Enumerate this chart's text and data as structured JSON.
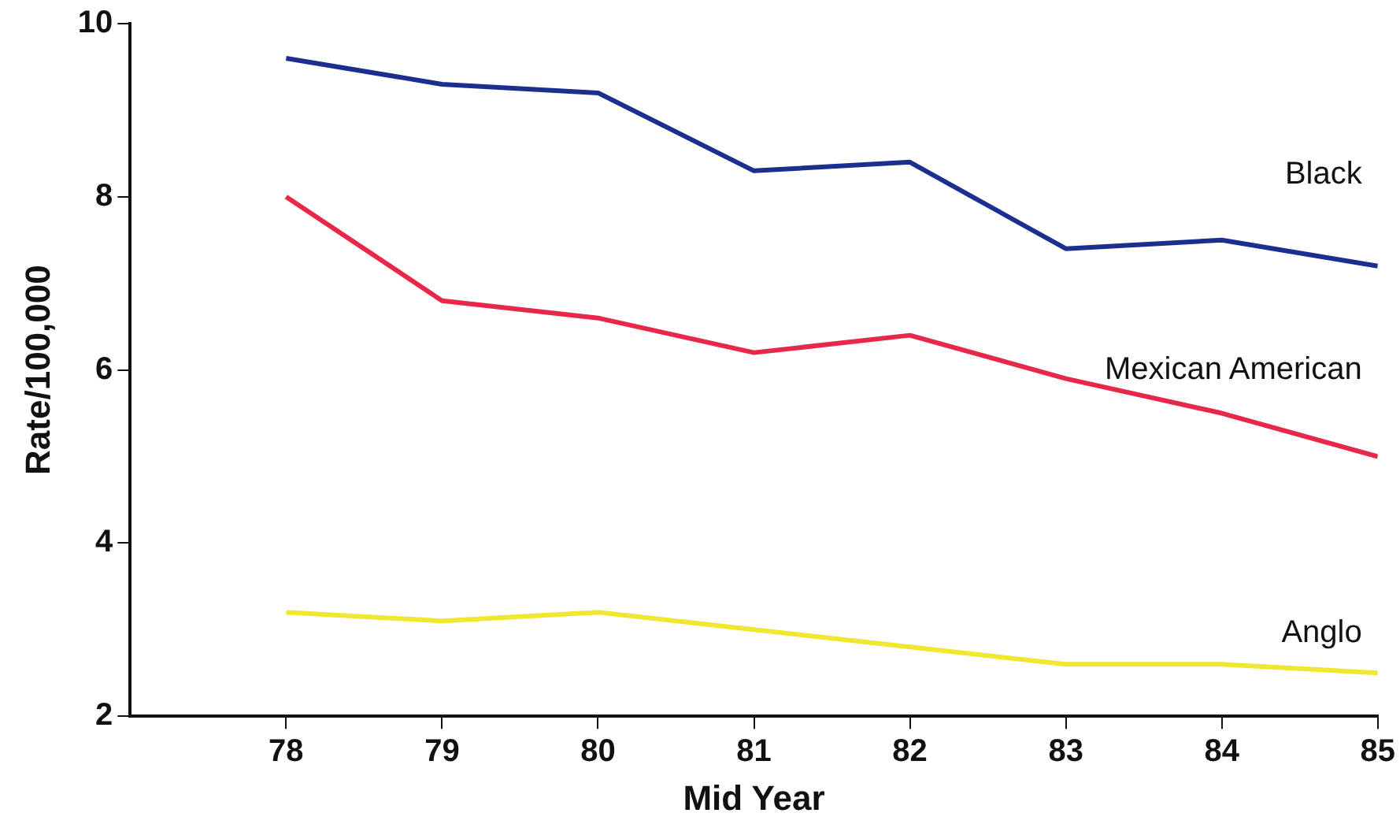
{
  "chart_data": {
    "type": "line",
    "xlabel": "Mid Year",
    "ylabel": "Rate/100,000",
    "x": [
      78,
      79,
      80,
      81,
      82,
      83,
      84,
      85
    ],
    "series": [
      {
        "name": "Black",
        "color": "#1c2f8f",
        "values": [
          9.6,
          9.3,
          9.2,
          8.3,
          8.4,
          7.4,
          7.5,
          7.2
        ]
      },
      {
        "name": "Mexican American",
        "color": "#e8284a",
        "values": [
          8.0,
          6.8,
          6.6,
          6.2,
          6.4,
          5.9,
          5.5,
          5.0
        ]
      },
      {
        "name": "Anglo",
        "color": "#f0e830",
        "values": [
          3.2,
          3.1,
          3.2,
          3.0,
          2.8,
          2.6,
          2.6,
          2.5
        ]
      }
    ],
    "xlim": [
      77,
      85
    ],
    "xticks": [
      78,
      79,
      80,
      81,
      82,
      83,
      84,
      85
    ],
    "ylim": [
      2,
      10
    ],
    "yticks": [
      2,
      4,
      6,
      8,
      10
    ],
    "grid": false,
    "legend": false,
    "marker": "none",
    "line_style": "solid"
  }
}
